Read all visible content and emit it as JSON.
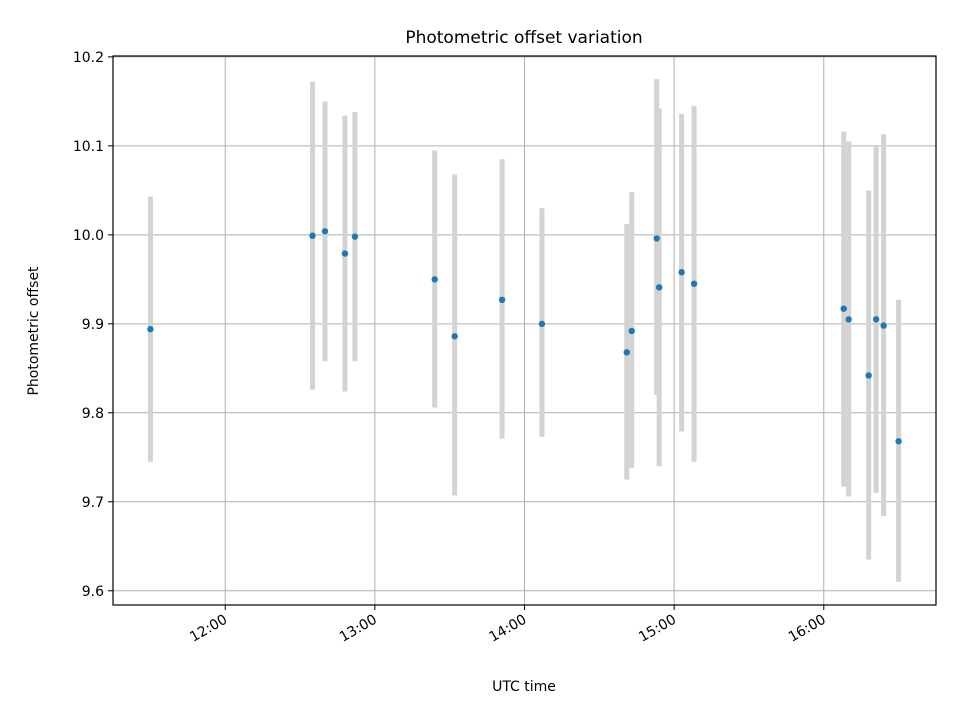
{
  "chart_data": {
    "type": "scatter",
    "title": "Photometric offset variation",
    "xlabel": "UTC time",
    "ylabel": "Photometric offset",
    "x_unit": "UTC time (HH:MM)",
    "xlim": [
      "11:15",
      "16:45"
    ],
    "ylim": [
      9.584,
      10.201
    ],
    "x_ticks": [
      "12:00",
      "13:00",
      "14:00",
      "15:00",
      "16:00"
    ],
    "y_ticks": [
      "9.6",
      "9.7",
      "9.8",
      "9.9",
      "10.0",
      "10.1",
      "10.2"
    ],
    "grid": true,
    "legend": "none",
    "colors": {
      "points": "#1f77b4",
      "errorbars": "#d3d3d3",
      "grid": "#b0b0b0"
    },
    "series": [
      {
        "points": [
          {
            "x": "11:30",
            "y": 9.894,
            "ylo": 9.745,
            "yhi": 10.043
          },
          {
            "x": "12:35",
            "y": 9.999,
            "ylo": 9.826,
            "yhi": 10.172
          },
          {
            "x": "12:40",
            "y": 10.004,
            "ylo": 9.858,
            "yhi": 10.15
          },
          {
            "x": "12:48",
            "y": 9.979,
            "ylo": 9.824,
            "yhi": 10.134
          },
          {
            "x": "12:52",
            "y": 9.998,
            "ylo": 9.858,
            "yhi": 10.138
          },
          {
            "x": "13:24",
            "y": 9.95,
            "ylo": 9.806,
            "yhi": 10.095
          },
          {
            "x": "13:32",
            "y": 9.886,
            "ylo": 9.707,
            "yhi": 10.068
          },
          {
            "x": "13:51",
            "y": 9.927,
            "ylo": 9.771,
            "yhi": 10.085
          },
          {
            "x": "14:07",
            "y": 9.9,
            "ylo": 9.773,
            "yhi": 10.03
          },
          {
            "x": "14:41",
            "y": 9.868,
            "ylo": 9.725,
            "yhi": 10.012
          },
          {
            "x": "14:43",
            "y": 9.892,
            "ylo": 9.738,
            "yhi": 10.048
          },
          {
            "x": "14:53",
            "y": 9.996,
            "ylo": 9.82,
            "yhi": 10.175
          },
          {
            "x": "14:54",
            "y": 9.941,
            "ylo": 9.74,
            "yhi": 10.142
          },
          {
            "x": "15:03",
            "y": 9.958,
            "ylo": 9.779,
            "yhi": 10.136
          },
          {
            "x": "15:08",
            "y": 9.945,
            "ylo": 9.745,
            "yhi": 10.145
          },
          {
            "x": "16:08",
            "y": 9.917,
            "ylo": 9.717,
            "yhi": 10.116
          },
          {
            "x": "16:10",
            "y": 9.905,
            "ylo": 9.706,
            "yhi": 10.105
          },
          {
            "x": "16:18",
            "y": 9.842,
            "ylo": 9.635,
            "yhi": 10.05
          },
          {
            "x": "16:21",
            "y": 9.905,
            "ylo": 9.71,
            "yhi": 10.101
          },
          {
            "x": "16:24",
            "y": 9.898,
            "ylo": 9.684,
            "yhi": 10.113
          },
          {
            "x": "16:30",
            "y": 9.768,
            "ylo": 9.61,
            "yhi": 9.927
          }
        ]
      }
    ]
  }
}
